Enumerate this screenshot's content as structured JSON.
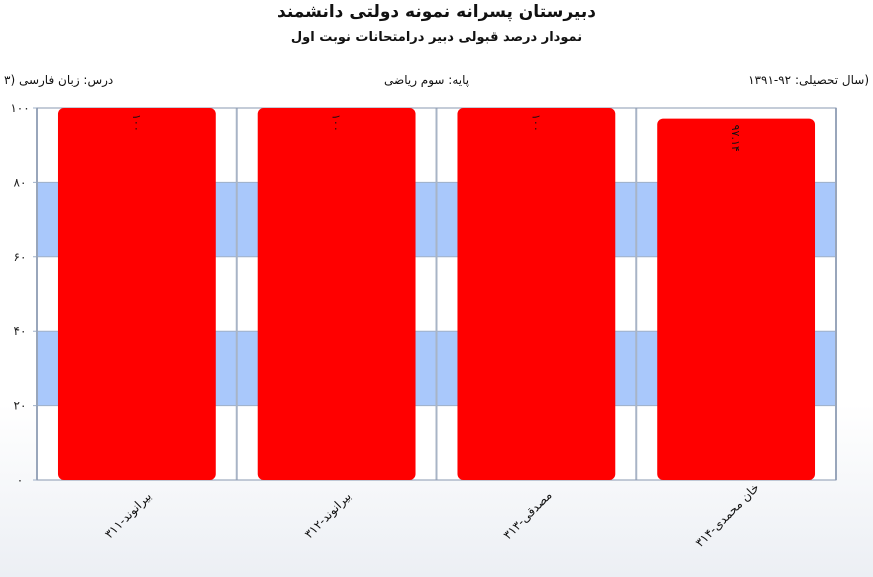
{
  "header": {
    "title": "دبیرستان پسرانه نمونه دولتی دانشمند",
    "subtitle": "نمودار درصد قبولی دبیر درامتحانات نوبت اول"
  },
  "info": {
    "year": "(سال تحصیلی: ۹۲-۱۳۹۱",
    "grade": "پایه: سوم ریاضی",
    "course": "درس: زبان فارسی  (۳"
  },
  "chart_data": {
    "type": "bar",
    "title": "نمودار درصد قبولی دبیر درامتحانات نوبت اول",
    "categories": [
      "بیرانوند-۳۱۱",
      "بیرانوند-۳۱۲",
      "مصدقی-۳۱۳",
      "خان محمدی-۳۱۴"
    ],
    "values": [
      100,
      100,
      100,
      97.14
    ],
    "data_labels": [
      "۱۰۰",
      "۱۰۰",
      "۱۰۰",
      "۹۷.۱۴"
    ],
    "y_ticks": [
      0,
      20,
      40,
      60,
      80,
      100
    ],
    "y_tick_labels": [
      "۰",
      "۲۰",
      "۴۰",
      "۶۰",
      "۸۰",
      "۱۰۰"
    ],
    "ylim": [
      0,
      100
    ],
    "bar_color": "#ff0000",
    "band_color": "#a9c8fb",
    "grid": true,
    "legend": "none"
  }
}
